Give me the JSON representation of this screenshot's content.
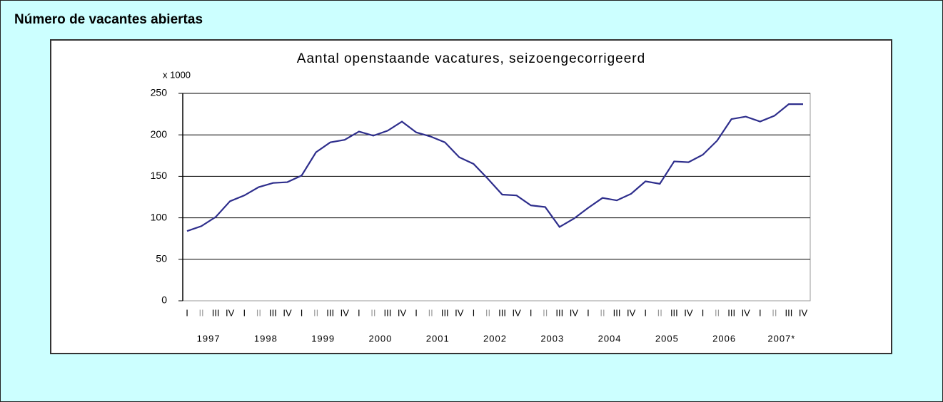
{
  "header": {
    "title": "Número de vacantes abiertas"
  },
  "chart_data": {
    "type": "line",
    "title": "Aantal openstaande vacatures, seizoengecorrigeerd",
    "y_label": "x 1000",
    "categories": [
      "I",
      "II",
      "III",
      "IV",
      "I",
      "II",
      "III",
      "IV",
      "I",
      "II",
      "III",
      "IV",
      "I",
      "II",
      "III",
      "IV",
      "I",
      "II",
      "III",
      "IV",
      "I",
      "II",
      "III",
      "IV",
      "I",
      "II",
      "III",
      "IV",
      "I",
      "II",
      "III",
      "IV",
      "I",
      "II",
      "III",
      "IV",
      "I",
      "II",
      "III",
      "IV",
      "I",
      "II",
      "III",
      "IV"
    ],
    "year_labels": [
      "1997",
      "1998",
      "1999",
      "2000",
      "2001",
      "2002",
      "2003",
      "2004",
      "2005",
      "2006",
      "2007*"
    ],
    "series": [
      {
        "name": "Aantal openstaande vacatures",
        "color": "#2e2e8c",
        "values": [
          84,
          90,
          101,
          120,
          127,
          137,
          142,
          143,
          151,
          179,
          191,
          194,
          204,
          199,
          205,
          216,
          203,
          198,
          191,
          173,
          165,
          147,
          128,
          127,
          115,
          113,
          89,
          99,
          112,
          124,
          121,
          129,
          144,
          141,
          168,
          167,
          176,
          193,
          219,
          222,
          216,
          223,
          237,
          237
        ]
      }
    ],
    "ylim": [
      0,
      250
    ],
    "yticks": [
      0,
      50,
      100,
      150,
      200,
      250
    ],
    "grid": true
  }
}
